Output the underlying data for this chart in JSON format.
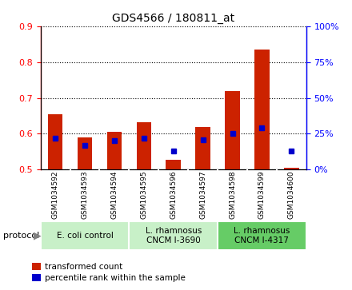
{
  "title": "GDS4566 / 180811_at",
  "samples": [
    "GSM1034592",
    "GSM1034593",
    "GSM1034594",
    "GSM1034595",
    "GSM1034596",
    "GSM1034597",
    "GSM1034598",
    "GSM1034599",
    "GSM1034600"
  ],
  "transformed_count": [
    0.655,
    0.59,
    0.605,
    0.632,
    0.527,
    0.618,
    0.72,
    0.835,
    0.505
  ],
  "percentile_rank": [
    22,
    17,
    20,
    22,
    13,
    21,
    25,
    29,
    13
  ],
  "ylim_left": [
    0.5,
    0.9
  ],
  "ylim_right": [
    0,
    100
  ],
  "yticks_left": [
    0.5,
    0.6,
    0.7,
    0.8,
    0.9
  ],
  "yticks_right": [
    0,
    25,
    50,
    75,
    100
  ],
  "protocols": [
    {
      "label": "E. coli control",
      "indices": [
        0,
        1,
        2
      ],
      "color": "#c8f0c8"
    },
    {
      "label": "L. rhamnosus\nCNCM I-3690",
      "indices": [
        3,
        4,
        5
      ],
      "color": "#c8f0c8"
    },
    {
      "label": "L. rhamnosus\nCNCM I-4317",
      "indices": [
        6,
        7,
        8
      ],
      "color": "#66cc66"
    }
  ],
  "bar_color": "#cc2200",
  "dot_color": "#0000cc",
  "bar_width": 0.5,
  "legend_labels": [
    "transformed count",
    "percentile rank within the sample"
  ],
  "protocol_label": "protocol",
  "sample_bg_color": "#d0d0d0",
  "sample_divider_color": "#ffffff",
  "proto_light_color": "#c8f0c8",
  "proto_dark_color": "#66cc66"
}
